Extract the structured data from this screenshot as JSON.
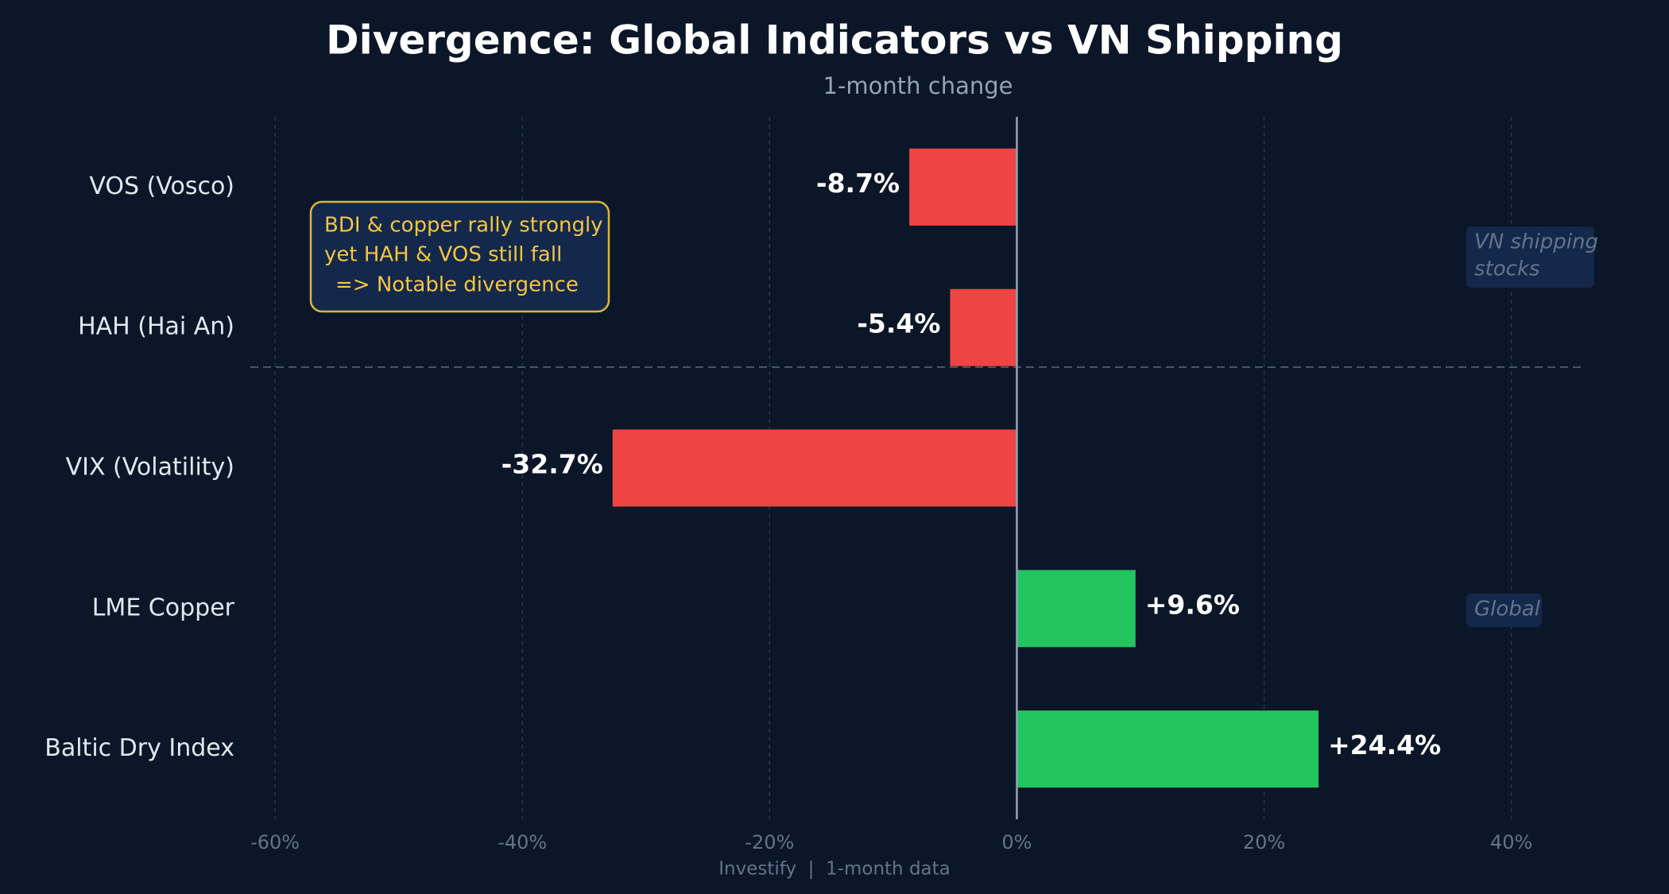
{
  "chart_data": {
    "type": "barh",
    "title": "Divergence: Global Indicators vs VN Shipping",
    "subtitle": "1-month change",
    "categories": [
      "VOS (Vosco)",
      "HAH (Hai An)",
      "VIX (Volatility)",
      "LME Copper",
      "Baltic Dry Index"
    ],
    "values": [
      -8.7,
      -5.4,
      -32.7,
      9.6,
      24.4
    ],
    "value_labels": [
      "-8.7%",
      "-5.4%",
      "-32.7%",
      "+9.6%",
      "+24.4%"
    ],
    "negative_color": "#ef4444",
    "positive_color": "#22c55e",
    "xlim": [
      -62,
      46
    ],
    "xticks": [
      {
        "value": -60,
        "label": "-60%"
      },
      {
        "value": -40,
        "label": "-40%"
      },
      {
        "value": -20,
        "label": "-20%"
      },
      {
        "value": 0,
        "label": "0%"
      },
      {
        "value": 20,
        "label": "20%"
      },
      {
        "value": 40,
        "label": "40%"
      }
    ],
    "grid": true,
    "annotation": [
      "BDI & copper rally strongly",
      "yet HAH & VOS still fall",
      "=> Notable divergence"
    ],
    "group_labels": [
      [
        "VN shipping",
        "stocks"
      ],
      [
        "Global"
      ]
    ],
    "footer": "Investify  |  1-month data"
  }
}
